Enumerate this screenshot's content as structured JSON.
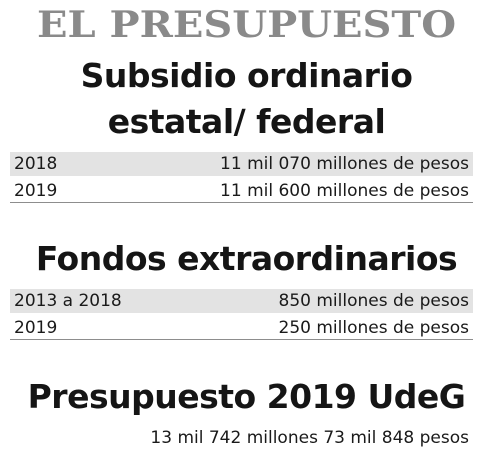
{
  "title": "EL PRESUPUESTO",
  "sections": [
    {
      "heading_lines": [
        "Subsidio ordinario",
        "estatal/ federal"
      ],
      "rows": [
        {
          "year": "2018",
          "amount": "11 mil 070 millones de pesos"
        },
        {
          "year": "2019",
          "amount": "11 mil 600 millones de pesos"
        }
      ]
    },
    {
      "heading_lines": [
        "Fondos extraordinarios"
      ],
      "rows": [
        {
          "year": "2013 a 2018",
          "amount": "850 millones de pesos"
        },
        {
          "year": "2019",
          "amount": "250 millones de pesos"
        }
      ]
    },
    {
      "heading_lines": [
        "Presupuesto 2019 UdeG"
      ],
      "total": "13 mil 742 millones 73 mil 848 pesos"
    }
  ],
  "colors": {
    "title": "#8a8a8a",
    "row_shade": "#e3e3e3",
    "rule": "#8d8d8d"
  }
}
